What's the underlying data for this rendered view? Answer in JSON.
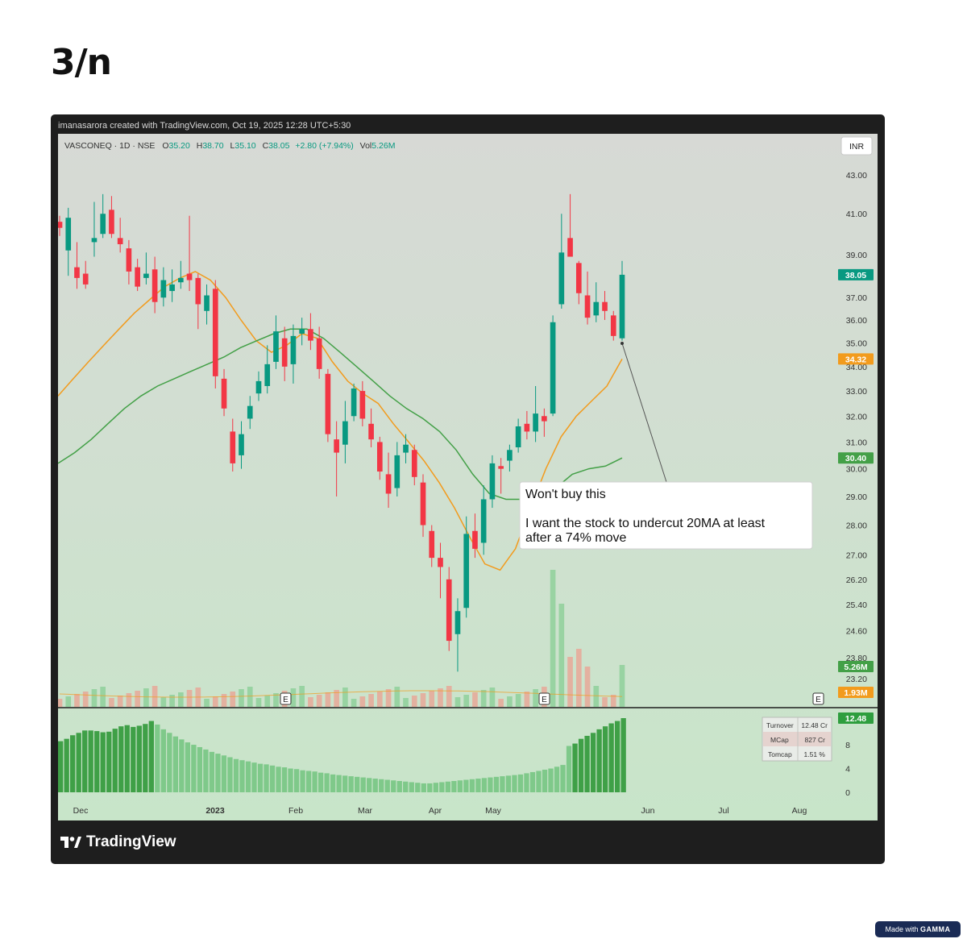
{
  "slide": {
    "title": "3/n",
    "badge_prefix": "Made with",
    "badge_brand": "GAMMA"
  },
  "meta": {
    "created_line": "imanasarora created with TradingView.com, Oct 19, 2025 12:28 UTC+5:30",
    "footer_logo": "TradingView"
  },
  "legend": {
    "symbol": "VASCONEQ · 1D · NSE",
    "open_label": "O",
    "open": "35.20",
    "high_label": "H",
    "high": "38.70",
    "low_label": "L",
    "low": "35.10",
    "close_label": "C",
    "close": "38.05",
    "change": "+2.80 (+7.94%)",
    "vol_label": "Vol",
    "vol": "5.26M",
    "currency_button": "INR"
  },
  "annotation": {
    "line1": "Won't buy this",
    "line2": "I want the stock to undercut 20MA at least",
    "line3": "after a 74% move"
  },
  "earnings_marker": "E",
  "info_table": [
    {
      "label": "Turnover",
      "value": "12.48 Cr"
    },
    {
      "label": "MCap",
      "value": "827 Cr"
    },
    {
      "label": "Tomcap",
      "value": "1.51 %"
    }
  ],
  "price_badges": [
    {
      "value": "38.05",
      "price": 38.05,
      "color": "#089981"
    },
    {
      "value": "34.32",
      "price": 34.32,
      "color": "#f29b1d"
    },
    {
      "value": "30.40",
      "price": 30.4,
      "color": "#43a047"
    }
  ],
  "volume_badges": [
    {
      "value": "5.26M",
      "color": "#43a047"
    },
    {
      "value": "1.93M",
      "color": "#f29b1d"
    }
  ],
  "turnover_badge": {
    "value": "12.48",
    "color": "#2e9e3e"
  },
  "colors": {
    "up": "#089981",
    "down": "#f23645",
    "ma20": "#f29b1d",
    "ma50": "#43a047",
    "volume_up": "#8fd09a",
    "volume_down": "#e7a898",
    "turnover": "#4caf50"
  },
  "chart_data": {
    "type": "candlestick",
    "price_axis_ticks": [
      43.0,
      41.0,
      39.0,
      37.0,
      36.0,
      35.0,
      34.0,
      33.0,
      32.0,
      31.0,
      30.0,
      29.0,
      28.0,
      27.0,
      26.2,
      25.4,
      24.6,
      23.8,
      23.2
    ],
    "price_axis_scale": "log",
    "price_range": [
      22.8,
      44.0
    ],
    "x_tick_labels": [
      "Dec",
      "2023",
      "Feb",
      "Mar",
      "Apr",
      "May",
      "Jun",
      "Jul",
      "Aug"
    ],
    "turnover_axis_ticks": [
      12.48,
      8,
      4,
      0
    ],
    "series": [
      {
        "name": "20MA",
        "values": [
          32.8,
          33.5,
          34.2,
          34.9,
          35.6,
          36.3,
          36.9,
          37.5,
          37.9,
          38.2,
          37.8,
          37.0,
          36.0,
          35.1,
          34.6,
          34.9,
          35.4,
          35.2,
          34.2,
          33.4,
          32.9,
          32.5,
          31.7,
          31.0,
          30.3,
          29.5,
          28.6,
          27.6,
          26.7,
          26.5,
          27.2,
          28.6,
          30.0,
          31.2,
          32.0,
          32.6,
          33.2,
          34.32
        ]
      },
      {
        "name": "50MA",
        "values": [
          30.2,
          30.6,
          31.1,
          31.7,
          32.3,
          32.8,
          33.2,
          33.5,
          33.8,
          34.1,
          34.4,
          34.8,
          35.1,
          35.4,
          35.6,
          35.6,
          35.2,
          34.6,
          34.0,
          33.4,
          32.8,
          32.3,
          31.9,
          31.4,
          30.7,
          29.8,
          29.1,
          28.9,
          28.9,
          29.0,
          29.3,
          29.8,
          30.0,
          30.1,
          30.4
        ]
      }
    ],
    "candles": [
      {
        "o": 40.6,
        "h": 40.9,
        "l": 39.9,
        "c": 40.3
      },
      {
        "o": 39.2,
        "h": 41.3,
        "l": 38.0,
        "c": 40.8
      },
      {
        "o": 38.4,
        "h": 39.6,
        "l": 37.4,
        "c": 37.9
      },
      {
        "o": 38.1,
        "h": 38.7,
        "l": 37.4,
        "c": 37.6
      },
      {
        "o": 39.6,
        "h": 41.6,
        "l": 38.9,
        "c": 39.8
      },
      {
        "o": 40.0,
        "h": 42.0,
        "l": 39.8,
        "c": 41.0
      },
      {
        "o": 41.2,
        "h": 41.9,
        "l": 39.8,
        "c": 40.0
      },
      {
        "o": 39.8,
        "h": 40.8,
        "l": 39.1,
        "c": 39.5
      },
      {
        "o": 39.3,
        "h": 39.7,
        "l": 37.6,
        "c": 38.2
      },
      {
        "o": 38.4,
        "h": 38.8,
        "l": 37.3,
        "c": 37.5
      },
      {
        "o": 37.9,
        "h": 39.1,
        "l": 37.6,
        "c": 38.1
      },
      {
        "o": 38.3,
        "h": 38.9,
        "l": 36.3,
        "c": 36.8
      },
      {
        "o": 37.0,
        "h": 38.4,
        "l": 36.6,
        "c": 37.8
      },
      {
        "o": 37.3,
        "h": 38.3,
        "l": 36.8,
        "c": 37.6
      },
      {
        "o": 37.7,
        "h": 38.7,
        "l": 37.4,
        "c": 37.9
      },
      {
        "o": 38.1,
        "h": 40.9,
        "l": 37.3,
        "c": 37.8
      },
      {
        "o": 37.9,
        "h": 38.1,
        "l": 35.6,
        "c": 36.7
      },
      {
        "o": 36.4,
        "h": 37.6,
        "l": 35.8,
        "c": 37.1
      },
      {
        "o": 37.4,
        "h": 37.8,
        "l": 33.1,
        "c": 33.6
      },
      {
        "o": 33.5,
        "h": 33.9,
        "l": 32.0,
        "c": 32.3
      },
      {
        "o": 31.4,
        "h": 31.9,
        "l": 29.9,
        "c": 30.2
      },
      {
        "o": 30.5,
        "h": 31.8,
        "l": 30.0,
        "c": 31.3
      },
      {
        "o": 31.9,
        "h": 32.8,
        "l": 31.5,
        "c": 32.4
      },
      {
        "o": 32.9,
        "h": 33.8,
        "l": 32.6,
        "c": 33.4
      },
      {
        "o": 33.2,
        "h": 34.9,
        "l": 32.9,
        "c": 34.1
      },
      {
        "o": 34.2,
        "h": 36.2,
        "l": 33.9,
        "c": 35.5
      },
      {
        "o": 35.2,
        "h": 35.7,
        "l": 33.4,
        "c": 34.0
      },
      {
        "o": 34.1,
        "h": 35.8,
        "l": 33.3,
        "c": 35.3
      },
      {
        "o": 35.4,
        "h": 36.1,
        "l": 34.9,
        "c": 35.6
      },
      {
        "o": 35.6,
        "h": 36.3,
        "l": 34.7,
        "c": 35.1
      },
      {
        "o": 35.2,
        "h": 35.7,
        "l": 33.5,
        "c": 33.9
      },
      {
        "o": 33.7,
        "h": 33.9,
        "l": 31.0,
        "c": 31.3
      },
      {
        "o": 31.1,
        "h": 31.8,
        "l": 29.0,
        "c": 30.6
      },
      {
        "o": 30.9,
        "h": 32.6,
        "l": 30.2,
        "c": 31.8
      },
      {
        "o": 32.0,
        "h": 33.3,
        "l": 31.8,
        "c": 33.1
      },
      {
        "o": 33.0,
        "h": 33.4,
        "l": 31.6,
        "c": 31.9
      },
      {
        "o": 31.7,
        "h": 32.3,
        "l": 30.8,
        "c": 31.1
      },
      {
        "o": 31.0,
        "h": 31.2,
        "l": 29.6,
        "c": 29.9
      },
      {
        "o": 29.8,
        "h": 30.6,
        "l": 28.6,
        "c": 29.1
      },
      {
        "o": 29.3,
        "h": 31.0,
        "l": 29.0,
        "c": 30.5
      },
      {
        "o": 30.6,
        "h": 31.3,
        "l": 30.2,
        "c": 30.9
      },
      {
        "o": 30.7,
        "h": 30.9,
        "l": 29.4,
        "c": 29.7
      },
      {
        "o": 29.5,
        "h": 29.8,
        "l": 27.6,
        "c": 28.0
      },
      {
        "o": 27.8,
        "h": 28.0,
        "l": 26.6,
        "c": 26.9
      },
      {
        "o": 26.9,
        "h": 27.4,
        "l": 25.6,
        "c": 26.6
      },
      {
        "o": 26.2,
        "h": 26.6,
        "l": 24.0,
        "c": 24.3
      },
      {
        "o": 24.5,
        "h": 25.6,
        "l": 23.4,
        "c": 25.2
      },
      {
        "o": 25.3,
        "h": 28.3,
        "l": 25.0,
        "c": 27.7
      },
      {
        "o": 27.8,
        "h": 28.4,
        "l": 26.9,
        "c": 27.2
      },
      {
        "o": 27.4,
        "h": 29.4,
        "l": 27.0,
        "c": 28.9
      },
      {
        "o": 28.9,
        "h": 30.5,
        "l": 28.6,
        "c": 30.2
      },
      {
        "o": 30.1,
        "h": 30.4,
        "l": 29.1,
        "c": 30.0
      },
      {
        "o": 30.3,
        "h": 30.9,
        "l": 29.9,
        "c": 30.7
      },
      {
        "o": 30.8,
        "h": 31.9,
        "l": 30.6,
        "c": 31.6
      },
      {
        "o": 31.7,
        "h": 32.2,
        "l": 31.1,
        "c": 31.4
      },
      {
        "o": 31.4,
        "h": 33.2,
        "l": 31.0,
        "c": 32.1
      },
      {
        "o": 32.0,
        "h": 32.3,
        "l": 31.2,
        "c": 31.8
      },
      {
        "o": 32.1,
        "h": 36.2,
        "l": 32.0,
        "c": 35.9
      },
      {
        "o": 36.7,
        "h": 41.0,
        "l": 36.5,
        "c": 39.1
      },
      {
        "o": 39.8,
        "h": 42.0,
        "l": 38.9,
        "c": 38.9
      },
      {
        "o": 38.6,
        "h": 38.7,
        "l": 36.7,
        "c": 37.2
      },
      {
        "o": 37.1,
        "h": 38.2,
        "l": 35.8,
        "c": 36.1
      },
      {
        "o": 36.2,
        "h": 37.7,
        "l": 35.9,
        "c": 36.8
      },
      {
        "o": 36.8,
        "h": 37.3,
        "l": 36.0,
        "c": 36.4
      },
      {
        "o": 36.2,
        "h": 36.4,
        "l": 35.1,
        "c": 35.3
      },
      {
        "o": 35.2,
        "h": 38.7,
        "l": 35.1,
        "c": 38.05
      }
    ],
    "volume_axis_badges": [
      "5.26M",
      "1.93M"
    ],
    "turnover_values": [
      8.6,
      9.0,
      9.6,
      10.0,
      10.4,
      10.4,
      10.3,
      10.1,
      10.2,
      10.7,
      11.1,
      11.3,
      11.0,
      11.2,
      11.5,
      12.0,
      11.4,
      10.6,
      10.0,
      9.4,
      8.9,
      8.4,
      8.0,
      7.6,
      7.2,
      6.8,
      6.5,
      6.2,
      5.9,
      5.6,
      5.4,
      5.2,
      5.0,
      4.8,
      4.7,
      4.5,
      4.3,
      4.2,
      4.0,
      3.9,
      3.7,
      3.6,
      3.5,
      3.3,
      3.2,
      3.0,
      2.9,
      2.8,
      2.7,
      2.6,
      2.5,
      2.4,
      2.3,
      2.2,
      2.1,
      2.0,
      1.9,
      1.8,
      1.7,
      1.6,
      1.5,
      1.5,
      1.6,
      1.7,
      1.8,
      1.9,
      2.0,
      2.1,
      2.2,
      2.3,
      2.4,
      2.5,
      2.6,
      2.7,
      2.8,
      2.9,
      3.0,
      3.2,
      3.4,
      3.6,
      3.8,
      4.0,
      4.3,
      4.6,
      7.8,
      8.2,
      9.0,
      9.5,
      10.0,
      10.6,
      11.1,
      11.6,
      12.0,
      12.48
    ]
  }
}
